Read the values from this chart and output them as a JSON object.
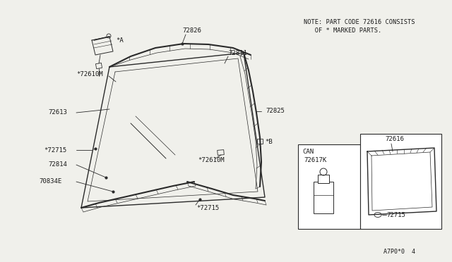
{
  "bg_color": "#f0f0eb",
  "line_color": "#2a2a2a",
  "text_color": "#1a1a1a",
  "fig_width": 6.4,
  "fig_height": 3.72,
  "dpi": 100,
  "note_line1": "NOTE: PART CODE 72616 CONSISTS",
  "note_line2": "OF * MARKED PARTS.",
  "footer_text": "A7P0*0  4"
}
